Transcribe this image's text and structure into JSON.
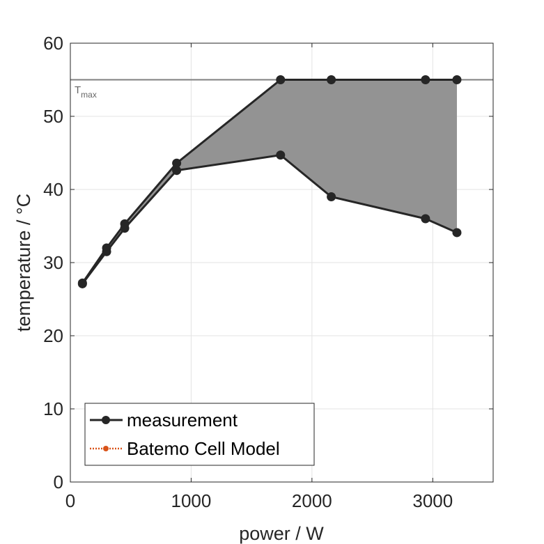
{
  "chart_data": {
    "type": "line",
    "xlabel": "power / W",
    "ylabel": "temperature / °C",
    "xlim": [
      0,
      3500
    ],
    "ylim": [
      0,
      60
    ],
    "xticks": [
      0,
      1000,
      2000,
      3000
    ],
    "yticks": [
      0,
      10,
      20,
      30,
      40,
      50,
      60
    ],
    "grid": true,
    "legend_position": "bottom-left",
    "series": [
      {
        "name": "measurement",
        "color": "#262626",
        "marker": "circle",
        "line": "solid",
        "upper": {
          "x": [
            100,
            300,
            450,
            880,
            1740,
            2160,
            2940,
            3200
          ],
          "y": [
            27.2,
            32.0,
            35.3,
            43.6,
            55.0,
            55.0,
            55.0,
            55.0
          ]
        },
        "lower": {
          "x": [
            100,
            300,
            450,
            880,
            1740,
            2160,
            2940,
            3200
          ],
          "y": [
            27.1,
            31.5,
            34.7,
            42.6,
            44.7,
            39.0,
            36.0,
            34.1
          ]
        },
        "fill_color": "#939393"
      },
      {
        "name": "Batemo Cell Model",
        "color": "#d95319",
        "marker": "circle",
        "line": "dotted",
        "x": [],
        "y": []
      }
    ],
    "reference_line": {
      "y": 55,
      "color": "#7f7f7f",
      "label_main": "T",
      "label_sub": "max"
    }
  }
}
